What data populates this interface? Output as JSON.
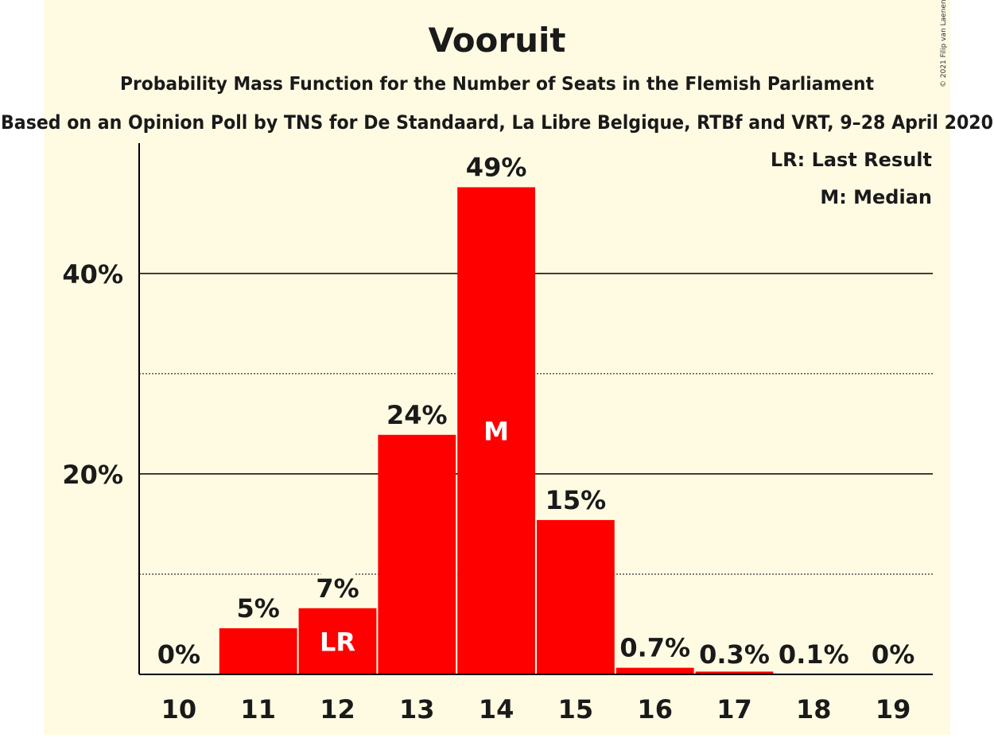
{
  "chart_data": {
    "type": "bar",
    "title": "Vooruit",
    "subtitle": "Probability Mass Function for the Number of Seats in the Flemish Parliament",
    "subtitle2": "Based on an Opinion Poll by TNS for De Standaard, La Libre Belgique, RTBf and VRT, 9–28 April 2020",
    "copyright": "© 2021 Filip van Laenen",
    "categories": [
      "10",
      "11",
      "12",
      "13",
      "14",
      "15",
      "16",
      "17",
      "18",
      "19"
    ],
    "values": [
      0,
      4.6,
      6.6,
      23.9,
      48.6,
      15.4,
      0.66,
      0.28,
      0.05,
      0
    ],
    "value_labels": [
      "0%",
      "5%",
      "7%",
      "24%",
      "49%",
      "15%",
      "0.7%",
      "0.3%",
      "0.1%",
      "0%"
    ],
    "bar_markers": [
      "",
      "",
      "LR",
      "",
      "M",
      "",
      "",
      "",
      "",
      ""
    ],
    "y_ticks": [
      20,
      40
    ],
    "y_tick_labels": [
      "20%",
      "40%"
    ],
    "ylim": [
      0,
      53
    ],
    "grid_major": [
      20,
      40
    ],
    "grid_minor": [
      10,
      30
    ],
    "legend": [
      "LR: Last Result",
      "M: Median"
    ],
    "legend_position": "top-right",
    "colors": {
      "bar": "#ff0000",
      "background": "#fffbe3"
    }
  }
}
